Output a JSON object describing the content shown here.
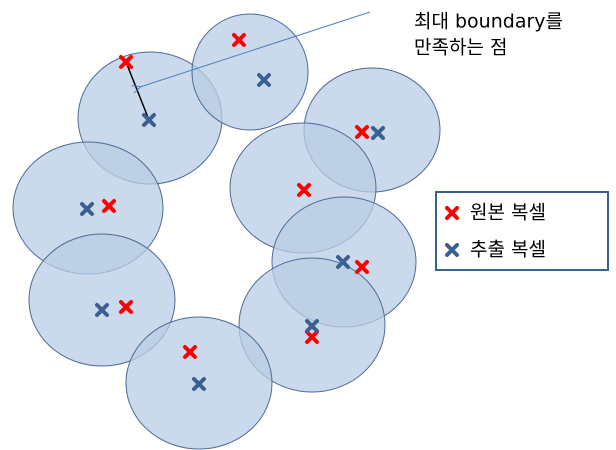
{
  "annotation": {
    "lines": [
      "최대 boundary를",
      "만족하는 점"
    ]
  },
  "legend": {
    "items": [
      "원본 복셀",
      "추출 복셀"
    ]
  }
}
